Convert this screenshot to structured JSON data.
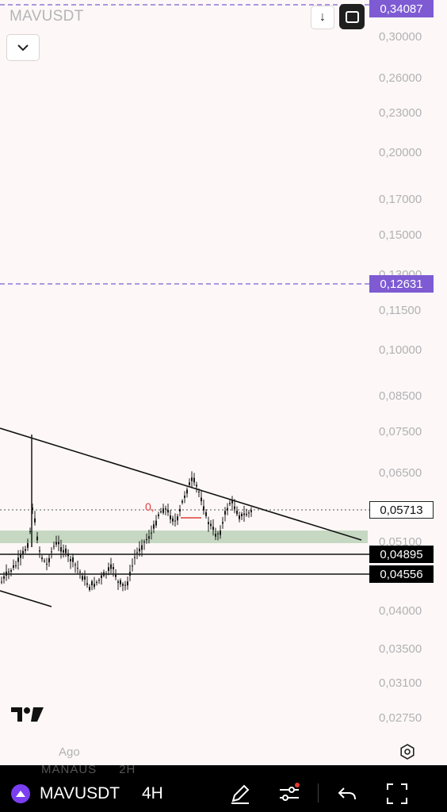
{
  "header": {
    "symbol": "MAVUSDT",
    "collapse_icon": "chevron-down-icon",
    "download_icon": "arrow-down-icon",
    "fullscreen_icon": "square-icon"
  },
  "price_axis": {
    "labels": [
      "0,30000",
      "0,26000",
      "0,23000",
      "0,20000",
      "0,17000",
      "0,15000",
      "0,13000",
      "0,11500",
      "0,10000",
      "0,08500",
      "0,07500",
      "0,06500",
      "0,05100",
      "0,04000",
      "0,03500",
      "0,03100",
      "0,02750"
    ],
    "tags": [
      {
        "label": "0,34087",
        "style": "purple"
      },
      {
        "label": "0,12631",
        "style": "purple"
      },
      {
        "label": "0,05713",
        "style": "current"
      },
      {
        "label": "0,04895",
        "style": "black"
      },
      {
        "label": "0,04556",
        "style": "black"
      }
    ]
  },
  "chart": {
    "annotation_text": "0,",
    "zone_color": "#c6d8c2",
    "alert_line_color": "#7e5bd3"
  },
  "time_axis": {
    "labels": [
      "Ago"
    ]
  },
  "footer": {
    "logo": "tradingview-logo",
    "settings_icon": "gear-icon"
  },
  "bottom_bar": {
    "symbol": "MAVUSDT",
    "interval": "4H",
    "ghost_symbol": "MANAUS",
    "ghost_interval": "2H",
    "icons": [
      "pen-icon",
      "indicator-settings-icon",
      "undo-icon",
      "fullscreen-icon"
    ]
  }
}
